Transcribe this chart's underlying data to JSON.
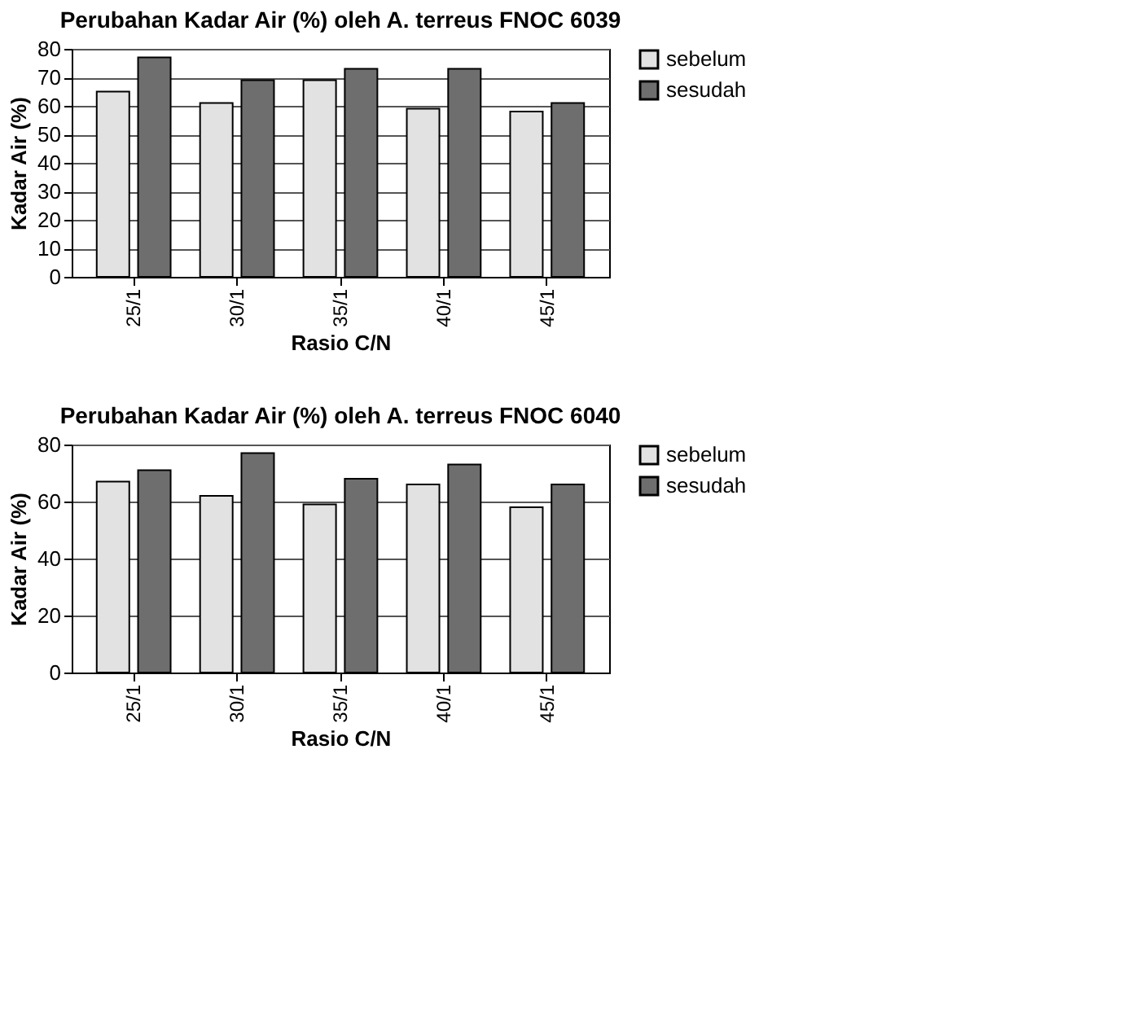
{
  "chart_data": [
    {
      "type": "bar",
      "title": "Perubahan Kadar Air (%) oleh A. terreus FNOC 6039",
      "xlabel": "Rasio C/N",
      "ylabel": "Kadar Air (%)",
      "categories": [
        "25/1",
        "30/1",
        "35/1",
        "40/1",
        "45/1"
      ],
      "series": [
        {
          "name": "sebelum",
          "color": "#e2e2e2",
          "values": [
            65,
            61,
            69,
            59,
            58
          ]
        },
        {
          "name": "sesudah",
          "color": "#6e6e6e",
          "values": [
            77,
            69,
            73,
            73,
            61
          ]
        }
      ],
      "ylim": [
        0,
        80
      ],
      "yticks": [
        0,
        10,
        20,
        30,
        40,
        50,
        60,
        70,
        80
      ],
      "grid": "y",
      "legend": "right"
    },
    {
      "type": "bar",
      "title": "Perubahan Kadar Air (%) oleh A. terreus FNOC 6040",
      "xlabel": "Rasio C/N",
      "ylabel": "Kadar Air (%)",
      "categories": [
        "25/1",
        "30/1",
        "35/1",
        "40/1",
        "45/1"
      ],
      "series": [
        {
          "name": "sebelum",
          "color": "#e2e2e2",
          "values": [
            67,
            62,
            59,
            66,
            58
          ]
        },
        {
          "name": "sesudah",
          "color": "#6e6e6e",
          "values": [
            71,
            77,
            68,
            73,
            66
          ]
        }
      ],
      "ylim": [
        0,
        80
      ],
      "yticks": [
        0,
        20,
        40,
        60,
        80
      ],
      "grid": "y",
      "legend": "right"
    }
  ]
}
